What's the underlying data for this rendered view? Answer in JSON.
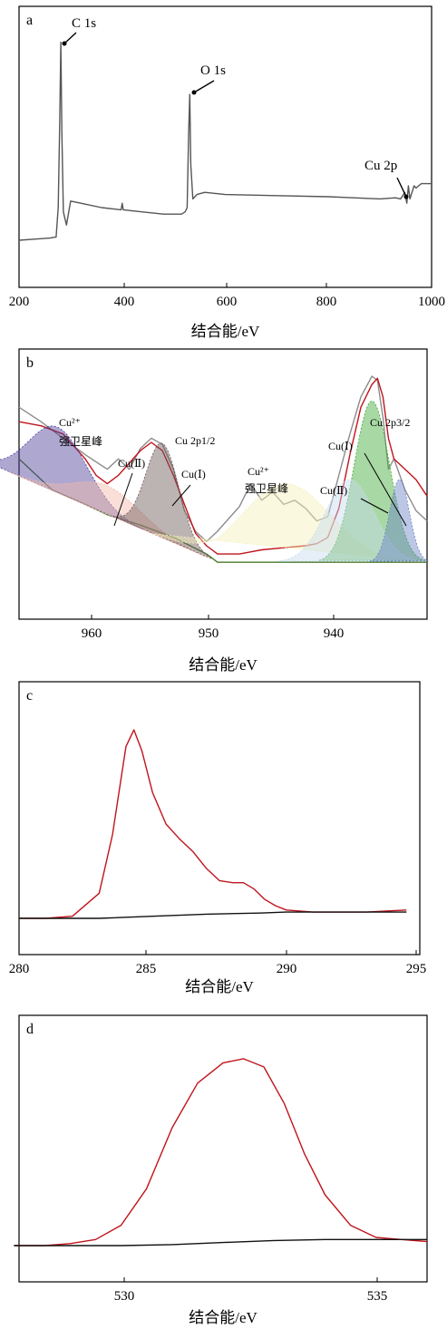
{
  "chart_data": [
    {
      "panel": "a",
      "type": "line",
      "xlabel": "结合能/eV",
      "xlim": [
        200,
        1000
      ],
      "xticks": [
        "200",
        "400",
        "600",
        "800",
        "1000"
      ],
      "ylim": [
        0,
        100
      ],
      "grid": false,
      "annotations": [
        "C 1s",
        "O 1s",
        "Cu 2p"
      ],
      "series": [
        {
          "color": "#555555",
          "x": [
            200,
            230,
            260,
            272,
            276,
            279,
            281,
            283,
            286,
            292,
            300,
            320,
            360,
            398,
            400,
            402,
            440,
            480,
            515,
            522,
            526,
            529,
            531,
            533,
            537,
            545,
            560,
            600,
            700,
            800,
            900,
            930,
            940,
            948,
            952,
            955,
            958,
            962,
            966,
            970,
            980,
            1000
          ],
          "y": [
            5,
            5.5,
            6,
            6.5,
            20,
            60,
            96,
            55,
            18,
            12,
            23,
            22,
            20,
            19,
            22,
            19,
            18,
            17,
            17,
            18,
            20,
            55,
            72,
            40,
            24,
            26,
            27,
            26,
            25.5,
            25,
            24,
            24.5,
            24,
            27,
            22,
            30,
            24,
            27,
            30,
            29,
            31,
            31
          ]
        }
      ]
    },
    {
      "panel": "b",
      "type": "area",
      "xlabel": "结合能/eV",
      "xlim": [
        966,
        929
      ],
      "xticks": [
        "960",
        "950",
        "940"
      ],
      "ylim": [
        0,
        100
      ],
      "grid": false,
      "annotations": [
        "Cu²⁺",
        "强卫星峰",
        "Cu(Ⅱ)",
        "Cu(Ⅰ)",
        "Cu 2p1/2",
        "Cu²⁺",
        "强卫星峰",
        "Cu 2p3/2",
        "Cu(Ⅰ)",
        "Cu(Ⅱ)"
      ],
      "series": [
        {
          "color": "#8c8c8c",
          "x": [
            966,
            964,
            962,
            960,
            958,
            957,
            956,
            955,
            954,
            953,
            952,
            951,
            950,
            949,
            948,
            946,
            945,
            944,
            943,
            942,
            941,
            940,
            939,
            938,
            937,
            936,
            935,
            934,
            933.5,
            933,
            932.5,
            932,
            931,
            930,
            929
          ],
          "y": [
            85,
            78,
            70,
            62,
            55,
            60,
            55,
            65,
            70,
            67,
            55,
            35,
            25,
            20,
            25,
            37,
            48,
            40,
            44,
            38,
            40,
            36,
            30,
            32,
            52,
            72,
            90,
            100,
            98,
            80,
            55,
            60,
            45,
            35,
            30
          ]
        },
        {
          "color": "#c0141c",
          "x": [
            966,
            964,
            962,
            960,
            959,
            958,
            957,
            956,
            955,
            954,
            953,
            952,
            951,
            950,
            949,
            948,
            946,
            945,
            944,
            942,
            940,
            939,
            938,
            937,
            936,
            935,
            934,
            933.5,
            933,
            932.5,
            932,
            931,
            930,
            929
          ],
          "y": [
            78,
            76,
            72,
            60,
            52,
            48,
            52,
            58,
            64,
            68,
            64,
            52,
            38,
            24,
            18,
            14,
            14,
            15,
            16,
            17,
            18,
            19,
            22,
            36,
            62,
            85,
            96,
            99,
            90,
            70,
            60,
            55,
            50,
            42
          ]
        },
        {
          "color": "#4a7a2a",
          "x": [
            966,
            963,
            960,
            958,
            955,
            952,
            949,
            948,
            946,
            940,
            935,
            930,
            929
          ],
          "y": [
            60,
            45,
            38,
            33,
            28,
            22,
            14,
            10,
            10,
            10,
            10,
            10,
            10
          ]
        }
      ]
    },
    {
      "panel": "c",
      "type": "line",
      "xlabel": "结合能/eV",
      "xlim": [
        280,
        295
      ],
      "xticks": [
        "280",
        "285",
        "290",
        "295"
      ],
      "ylim": [
        0,
        100
      ],
      "grid": false,
      "series": [
        {
          "color": "#c0141c",
          "x": [
            280,
            281,
            282,
            283,
            283.5,
            284,
            284.3,
            284.6,
            285,
            285.5,
            286,
            286.5,
            287,
            287.5,
            288,
            288.4,
            288.8,
            289.2,
            289.6,
            290,
            291,
            292,
            293,
            294.5
          ],
          "y": [
            0,
            0,
            1,
            12,
            40,
            82,
            90,
            80,
            60,
            45,
            38,
            32,
            24,
            18,
            17,
            17,
            14,
            9,
            6,
            4,
            3,
            3,
            3,
            4
          ]
        },
        {
          "color": "#111111",
          "x": [
            280,
            283,
            285,
            287,
            289,
            290,
            292,
            294.5
          ],
          "y": [
            0,
            0,
            1,
            2,
            2.5,
            3,
            3,
            3
          ]
        }
      ]
    },
    {
      "panel": "d",
      "type": "line",
      "xlabel": "结合能/eV",
      "xlim": [
        528,
        536
      ],
      "xticks": [
        "530",
        "535"
      ],
      "ylim": [
        0,
        100
      ],
      "grid": false,
      "series": [
        {
          "color": "#c0141c",
          "x": [
            527.9,
            528.5,
            529,
            529.5,
            530,
            530.5,
            531,
            531.5,
            532,
            532.4,
            532.8,
            533.2,
            533.6,
            534,
            534.5,
            535,
            535.5,
            536
          ],
          "y": [
            0,
            0,
            1,
            3,
            10,
            28,
            58,
            80,
            90,
            92,
            88,
            70,
            45,
            25,
            10,
            4,
            3,
            2
          ]
        },
        {
          "color": "#111111",
          "x": [
            527.9,
            529,
            530,
            531,
            532,
            533,
            534,
            535,
            536
          ],
          "y": [
            0,
            0,
            0,
            0.5,
            1.5,
            2.5,
            3,
            3,
            3
          ]
        }
      ]
    }
  ]
}
